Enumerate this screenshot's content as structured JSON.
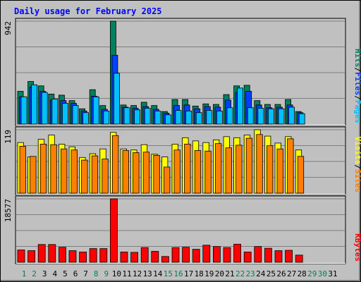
{
  "chart_title": "Daily usage for February 2025",
  "colors": {
    "hits": "#00805c",
    "files": "#0040ff",
    "pages": "#00c0ff",
    "visits": "#ffff00",
    "sites": "#ff8000",
    "kbytes": "#ff0000",
    "weekend": "#00805c",
    "weekday": "#000000",
    "plot_bg": "#c0c0c0",
    "grid": "#808080",
    "title": "#0000ff"
  },
  "chart_data": [
    {
      "type": "bar",
      "panel": "top",
      "y_max_label": "942",
      "ylim": [
        0,
        942
      ],
      "categories": [
        "1",
        "2",
        "3",
        "4",
        "5",
        "6",
        "7",
        "8",
        "9",
        "10",
        "11",
        "12",
        "13",
        "14",
        "15",
        "16",
        "17",
        "18",
        "19",
        "20",
        "21",
        "22",
        "23",
        "24",
        "25",
        "26",
        "27",
        "28",
        "29",
        "30",
        "31"
      ],
      "weekend_days": [
        "1",
        "2",
        "8",
        "9",
        "15",
        "16",
        "22",
        "23",
        "29",
        "30"
      ],
      "legend": [
        {
          "label": "Pages",
          "color": "#00c0ff"
        },
        {
          "label": "/",
          "color": "#000000"
        },
        {
          "label": "Files",
          "color": "#0040ff"
        },
        {
          "label": "/",
          "color": "#000000"
        },
        {
          "label": "Hits",
          "color": "#00805c"
        }
      ],
      "series": [
        {
          "name": "Hits",
          "color": "#00805c",
          "values": [
            300,
            390,
            350,
            275,
            265,
            215,
            140,
            315,
            170,
            942,
            175,
            170,
            200,
            170,
            115,
            225,
            225,
            165,
            185,
            180,
            270,
            350,
            355,
            215,
            180,
            180,
            225,
            115,
            null,
            null,
            null
          ]
        },
        {
          "name": "Files",
          "color": "#0040ff",
          "values": [
            250,
            340,
            300,
            220,
            215,
            190,
            120,
            255,
            135,
            630,
            155,
            145,
            160,
            135,
            100,
            170,
            175,
            140,
            160,
            155,
            220,
            290,
            300,
            175,
            150,
            155,
            175,
            105,
            null,
            null,
            null
          ]
        },
        {
          "name": "Pages",
          "color": "#00c0ff",
          "values": [
            250,
            360,
            290,
            230,
            190,
            170,
            105,
            250,
            120,
            465,
            150,
            130,
            145,
            120,
            85,
            125,
            120,
            105,
            125,
            120,
            150,
            330,
            150,
            145,
            140,
            140,
            155,
            95,
            null,
            null,
            null
          ]
        }
      ]
    },
    {
      "type": "bar",
      "panel": "middle",
      "y_max_label": "119",
      "ylim": [
        0,
        119
      ],
      "categories": [
        "1",
        "2",
        "3",
        "4",
        "5",
        "6",
        "7",
        "8",
        "9",
        "10",
        "11",
        "12",
        "13",
        "14",
        "15",
        "16",
        "17",
        "18",
        "19",
        "20",
        "21",
        "22",
        "23",
        "24",
        "25",
        "26",
        "27",
        "28",
        "29",
        "30",
        "31"
      ],
      "legend": [
        {
          "label": "Sites",
          "color": "#ff8000"
        },
        {
          "label": "/",
          "color": "#000000"
        },
        {
          "label": "Visits",
          "color": "#ffff00"
        }
      ],
      "series": [
        {
          "name": "Visits",
          "color": "#ffff00",
          "values": [
            95,
            68,
            101,
            109,
            92,
            87,
            67,
            74,
            83,
            114,
            83,
            81,
            91,
            73,
            68,
            92,
            104,
            98,
            95,
            100,
            106,
            104,
            109,
            119,
            107,
            94,
            106,
            81,
            null,
            null,
            null
          ]
        },
        {
          "name": "Sites",
          "color": "#ff8000",
          "values": [
            88,
            69,
            92,
            91,
            83,
            81,
            62,
            70,
            64,
            108,
            80,
            76,
            77,
            71,
            49,
            81,
            92,
            80,
            79,
            93,
            85,
            90,
            103,
            110,
            89,
            83,
            102,
            69,
            null,
            null,
            null
          ]
        }
      ]
    },
    {
      "type": "bar",
      "panel": "bottom",
      "y_max_label": "18577",
      "ylim": [
        0,
        18577
      ],
      "categories": [
        "1",
        "2",
        "3",
        "4",
        "5",
        "6",
        "7",
        "8",
        "9",
        "10",
        "11",
        "12",
        "13",
        "14",
        "15",
        "16",
        "17",
        "18",
        "19",
        "20",
        "21",
        "22",
        "23",
        "24",
        "25",
        "26",
        "27",
        "28",
        "29",
        "30",
        "31"
      ],
      "legend": [
        {
          "label": "KBytes",
          "color": "#ff0000"
        }
      ],
      "series": [
        {
          "name": "KBytes",
          "color": "#ff0000",
          "values": [
            3600,
            3400,
            5200,
            5200,
            4400,
            3400,
            3000,
            4000,
            4000,
            18577,
            3000,
            2900,
            4300,
            3200,
            1700,
            4300,
            4400,
            3800,
            5000,
            4600,
            4300,
            5300,
            3000,
            4600,
            4100,
            3400,
            3500,
            2100,
            null,
            null,
            null
          ]
        }
      ]
    }
  ]
}
